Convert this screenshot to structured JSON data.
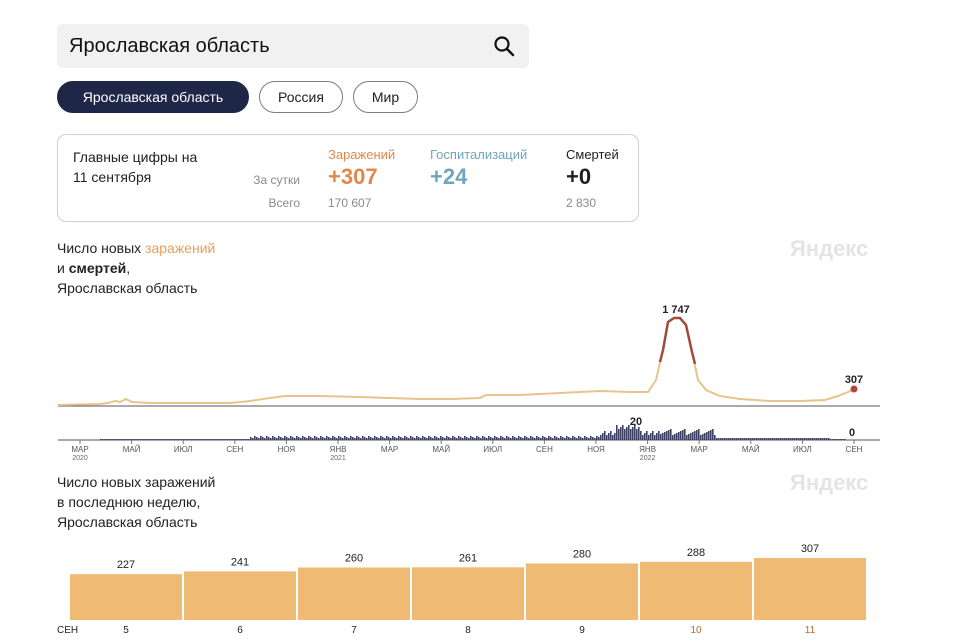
{
  "search": {
    "value": "Ярославская область"
  },
  "chips": [
    {
      "label": "Ярославская область",
      "active": true
    },
    {
      "label": "Россия",
      "active": false
    },
    {
      "label": "Мир",
      "active": false
    }
  ],
  "stats": {
    "title_line1": "Главные цифры на",
    "title_line2": "11 сентября",
    "row_daily": "За сутки",
    "row_total": "Всего",
    "infections": {
      "label": "Заражений",
      "daily": "+307",
      "total": "170 607",
      "color": "#e0884a"
    },
    "hospitalizations": {
      "label": "Госпитализаций",
      "daily": "+24",
      "total": "",
      "color": "#6fa5bd"
    },
    "deaths": {
      "label": "Смертей",
      "daily": "+0",
      "total": "2 830",
      "color": "#1f1f1f"
    }
  },
  "chart1": {
    "title_part1": "Число новых ",
    "title_accent": "заражений",
    "title_line2_a": "и ",
    "title_line2_b": "смертей",
    "title_line2_c": ",",
    "title_line3": "Ярославская область",
    "watermark": "Яндекс",
    "peak_label": "1 747",
    "last_label": "307",
    "deaths_peak_label": "20",
    "deaths_last_label": "0",
    "months": [
      {
        "label": "МАР",
        "year": "2020"
      },
      {
        "label": "МАЙ",
        "year": ""
      },
      {
        "label": "ИЮЛ",
        "year": ""
      },
      {
        "label": "СЕН",
        "year": ""
      },
      {
        "label": "НОЯ",
        "year": ""
      },
      {
        "label": "ЯНВ",
        "year": "2021"
      },
      {
        "label": "МАР",
        "year": ""
      },
      {
        "label": "МАЙ",
        "year": ""
      },
      {
        "label": "ИЮЛ",
        "year": ""
      },
      {
        "label": "СЕН",
        "year": ""
      },
      {
        "label": "НОЯ",
        "year": ""
      },
      {
        "label": "ЯНВ",
        "year": "2022"
      },
      {
        "label": "МАР",
        "year": ""
      },
      {
        "label": "МАЙ",
        "year": ""
      },
      {
        "label": "ИЮЛ",
        "year": ""
      },
      {
        "label": "СЕН",
        "year": ""
      }
    ]
  },
  "chart2": {
    "title_line1": "Число новых заражений",
    "title_line2": "в последнюю неделю,",
    "title_line3": "Ярославская область",
    "watermark": "Яндекс",
    "month_label": "СЕН"
  },
  "chart_data": [
    {
      "type": "line",
      "title": "Число новых заражений и смертей, Ярославская область",
      "series": [
        {
          "name": "заражений",
          "x": [
            "2020-03",
            "2020-04",
            "2020-05",
            "2020-06",
            "2020-07",
            "2020-08",
            "2020-09",
            "2020-10",
            "2020-11",
            "2020-12",
            "2021-01",
            "2021-02",
            "2021-03",
            "2021-04",
            "2021-05",
            "2021-06",
            "2021-07",
            "2021-08",
            "2021-09",
            "2021-10",
            "2021-11",
            "2021-12",
            "2022-01",
            "2022-02-01",
            "2022-02-10",
            "2022-02-20",
            "2022-03",
            "2022-04",
            "2022-05",
            "2022-06",
            "2022-07",
            "2022-08",
            "2022-09-11"
          ],
          "values": [
            0,
            40,
            60,
            50,
            40,
            40,
            40,
            55,
            110,
            150,
            150,
            150,
            130,
            120,
            110,
            100,
            90,
            140,
            160,
            170,
            190,
            210,
            220,
            900,
            1747,
            900,
            200,
            120,
            80,
            60,
            60,
            110,
            307
          ]
        }
      ],
      "annotations": [
        "1 747",
        "307",
        "20",
        "0"
      ]
    },
    {
      "type": "bar",
      "title": "Число новых заражений в последнюю неделю, Ярославская область",
      "categories": [
        "5",
        "6",
        "7",
        "8",
        "9",
        "10",
        "11"
      ],
      "values": [
        227,
        241,
        260,
        261,
        280,
        288,
        307
      ],
      "color": "#efbb74"
    }
  ]
}
